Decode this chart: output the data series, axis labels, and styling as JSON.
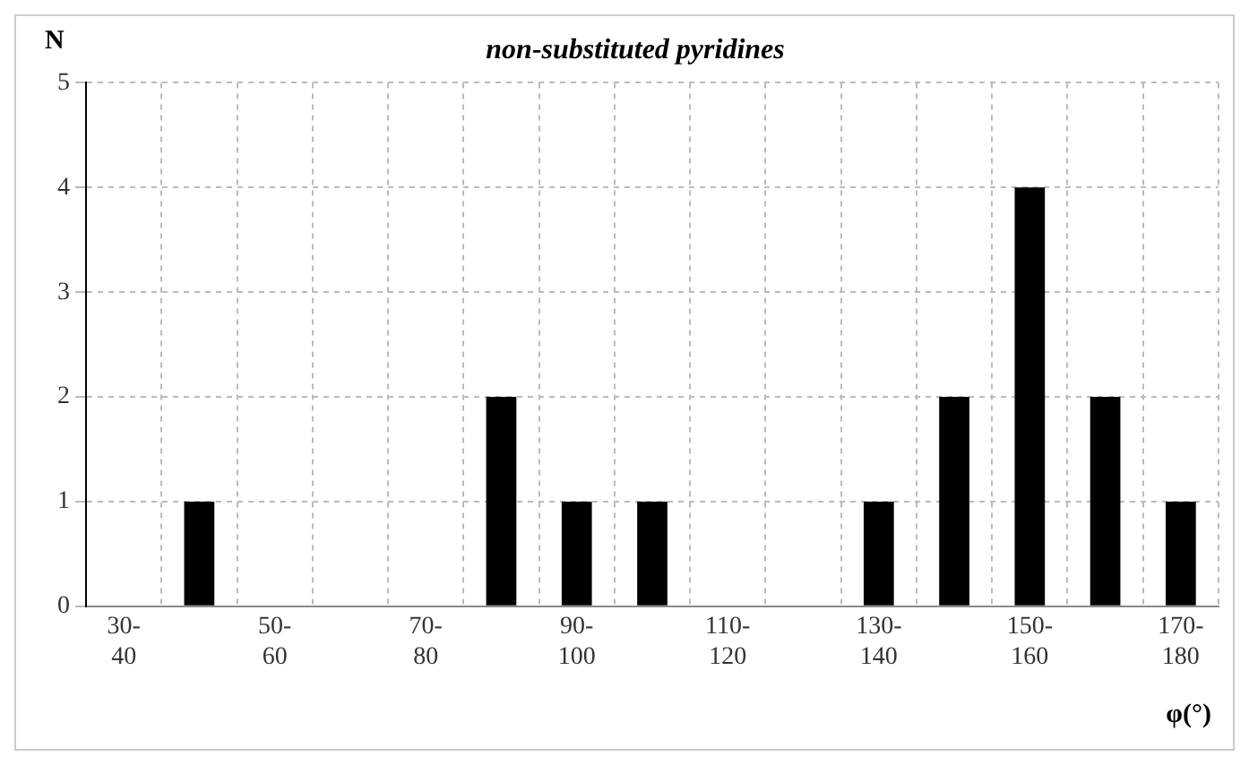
{
  "chart_data": {
    "type": "bar",
    "title": "non-substituted pyridines",
    "xlabel": "φ(°)",
    "ylabel": "N",
    "categories": [
      "30-40",
      null,
      "50-60",
      null,
      "70-80",
      null,
      "90-100",
      null,
      "110-120",
      null,
      "130-140",
      null,
      "150-160",
      null,
      "170-180"
    ],
    "values": [
      0,
      1,
      0,
      0,
      0,
      2,
      1,
      1,
      0,
      0,
      1,
      2,
      4,
      2,
      1
    ],
    "color": "#000000",
    "ylim": [
      0,
      5
    ],
    "yticks": [
      0,
      1,
      2,
      3,
      4,
      5
    ],
    "grid": true,
    "legend": false
  }
}
